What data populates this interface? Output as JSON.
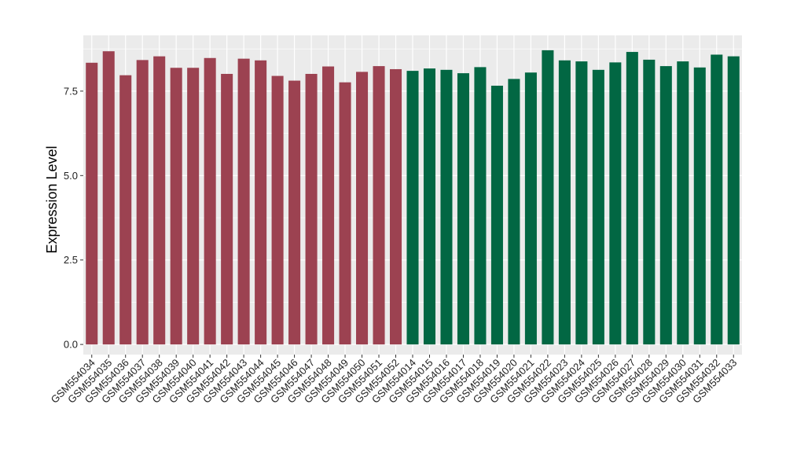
{
  "chart_data": {
    "type": "bar",
    "title": "",
    "xlabel": "",
    "ylabel": "Expression Level",
    "ylim": [
      -0.3,
      9.15
    ],
    "yticks": [
      0.0,
      2.5,
      5.0,
      7.5
    ],
    "ytick_labels": [
      "0.0",
      "2.5",
      "5.0",
      "7.5"
    ],
    "grid": true,
    "legend": "none",
    "categories": [
      "GSM554034",
      "GSM554035",
      "GSM554036",
      "GSM554037",
      "GSM554038",
      "GSM554039",
      "GSM554040",
      "GSM554041",
      "GSM554042",
      "GSM554043",
      "GSM554044",
      "GSM554045",
      "GSM554046",
      "GSM554047",
      "GSM554048",
      "GSM554049",
      "GSM554050",
      "GSM554051",
      "GSM554052",
      "GSM554014",
      "GSM554015",
      "GSM554016",
      "GSM554017",
      "GSM554018",
      "GSM554019",
      "GSM554020",
      "GSM554021",
      "GSM554022",
      "GSM554023",
      "GSM554024",
      "GSM554025",
      "GSM554026",
      "GSM554027",
      "GSM554028",
      "GSM554029",
      "GSM554030",
      "GSM554031",
      "GSM554032",
      "GSM554033"
    ],
    "values": [
      8.34,
      8.68,
      7.97,
      8.42,
      8.53,
      8.19,
      8.19,
      8.48,
      8.01,
      8.46,
      8.41,
      7.95,
      7.81,
      8.01,
      8.23,
      7.76,
      8.07,
      8.24,
      8.15,
      8.1,
      8.17,
      8.13,
      8.03,
      8.21,
      7.66,
      7.86,
      8.05,
      8.71,
      8.41,
      8.38,
      8.13,
      8.35,
      8.66,
      8.43,
      8.24,
      8.38,
      8.2,
      8.58,
      8.53
    ],
    "groups": [
      0,
      0,
      0,
      0,
      0,
      0,
      0,
      0,
      0,
      0,
      0,
      0,
      0,
      0,
      0,
      0,
      0,
      0,
      0,
      1,
      1,
      1,
      1,
      1,
      1,
      1,
      1,
      1,
      1,
      1,
      1,
      1,
      1,
      1,
      1,
      1,
      1,
      1,
      1
    ],
    "colors": [
      "#9c4251",
      "#026743"
    ],
    "panel_background": "#ebebeb",
    "grid_color": "#ffffff"
  }
}
